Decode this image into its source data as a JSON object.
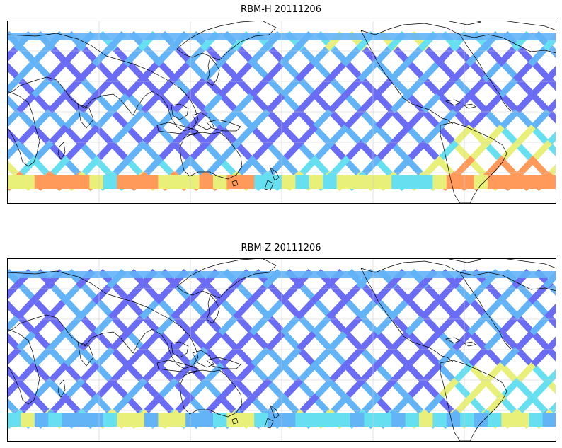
{
  "panels": [
    {
      "title": "RBM-H 20111206",
      "colormap": "jet",
      "high_lat_south": "warm",
      "high_lat_north": "mixed"
    },
    {
      "title": "RBM-Z 20111206",
      "colormap": "jet",
      "high_lat_south": "cool",
      "high_lat_north": "cool"
    }
  ],
  "colors": {
    "swath_low": "#6a6cf3",
    "swath_mid": "#63b3f7",
    "swath_cyan": "#66e0f0",
    "swath_yellow": "#e8f07a",
    "swath_orange": "#ff9a5a",
    "coastline": "#000000",
    "grid": "#cccccc",
    "frame": "#000000"
  }
}
